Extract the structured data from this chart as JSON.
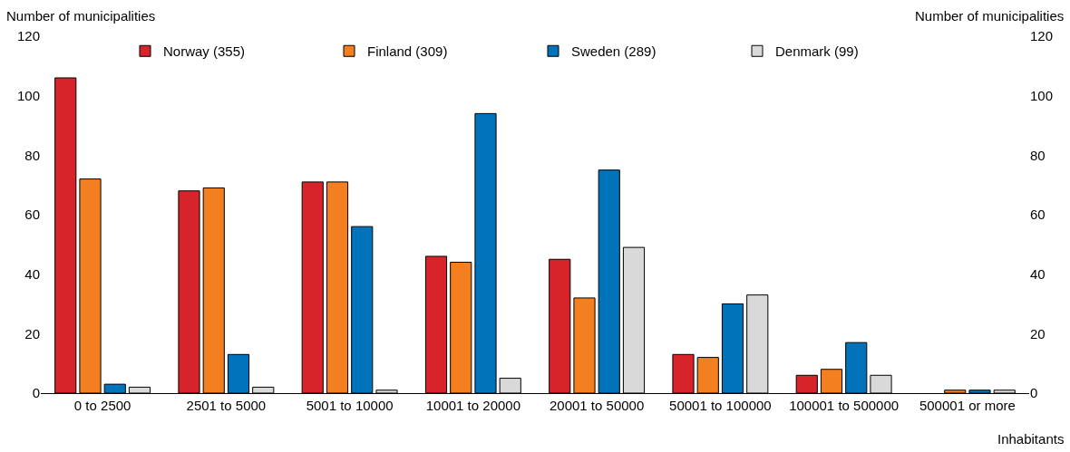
{
  "chart_data": {
    "type": "bar",
    "ylabel": "Number of municipalities",
    "y2label": "Number of municipalities",
    "xlabel": "Inhabitants",
    "categories": [
      "0 to 2500",
      "2501 to 5000",
      "5001 to 10000",
      "10001 to 20000",
      "20001 to 50000",
      "50001 to 100000",
      "100001 to 500000",
      "500001 or more"
    ],
    "series": [
      {
        "name": "Norway (355)",
        "color": "#d7242b",
        "values": [
          106,
          68,
          71,
          46,
          45,
          13,
          6,
          0
        ]
      },
      {
        "name": "Finland (309)",
        "color": "#f47f20",
        "values": [
          72,
          69,
          71,
          44,
          32,
          12,
          8,
          1
        ]
      },
      {
        "name": "Sweden (289)",
        "color": "#0073bb",
        "values": [
          3,
          13,
          56,
          94,
          75,
          30,
          17,
          1
        ]
      },
      {
        "name": "Denmark (99)",
        "color": "#d9d9d9",
        "values": [
          2,
          2,
          1,
          5,
          49,
          33,
          6,
          1
        ]
      }
    ],
    "ylim": [
      0,
      120
    ],
    "yticks": [
      0,
      20,
      40,
      60,
      80,
      100,
      120
    ],
    "y2lim": [
      0,
      120
    ],
    "y2ticks": [
      0,
      20,
      40,
      60,
      80,
      100,
      120
    ],
    "legend": "top"
  }
}
